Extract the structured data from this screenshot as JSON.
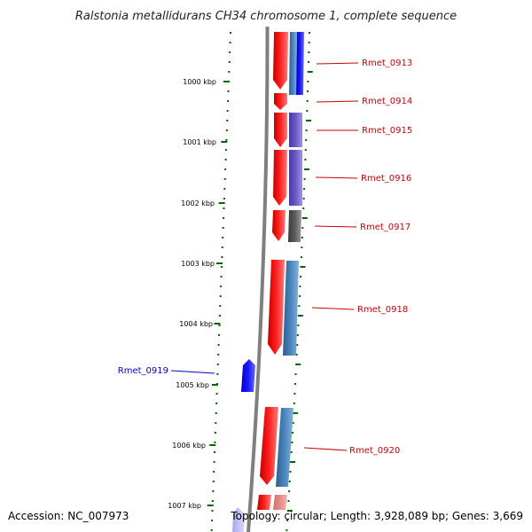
{
  "title": "Ralstonia metallidurans CH34 chromosome 1, complete sequence",
  "colors": {
    "forward": "#ff0000",
    "reverse": "#0000ff",
    "backbone": "#808080",
    "tick": "#006400",
    "label_forward": "#cc0000",
    "label_reverse": "#0000cc"
  },
  "ticks": [
    "1000 kbp",
    "1001 kbp",
    "1002 kbp",
    "1003 kbp",
    "1004 kbp",
    "1005 kbp",
    "1006 kbp",
    "1007 kbp"
  ],
  "genes": [
    {
      "label": "Rmet_0913",
      "strand": "forward"
    },
    {
      "label": "Rmet_0914",
      "strand": "forward"
    },
    {
      "label": "Rmet_0915",
      "strand": "forward"
    },
    {
      "label": "Rmet_0916",
      "strand": "forward"
    },
    {
      "label": "Rmet_0917",
      "strand": "forward"
    },
    {
      "label": "Rmet_0918",
      "strand": "forward"
    },
    {
      "label": "Rmet_0919",
      "strand": "reverse"
    },
    {
      "label": "Rmet_0920",
      "strand": "forward"
    }
  ],
  "footer": {
    "accession": "Accession: NC_007973",
    "summary": "Topology: circular; Length: 3,928,089 bp; Genes: 3,669"
  }
}
